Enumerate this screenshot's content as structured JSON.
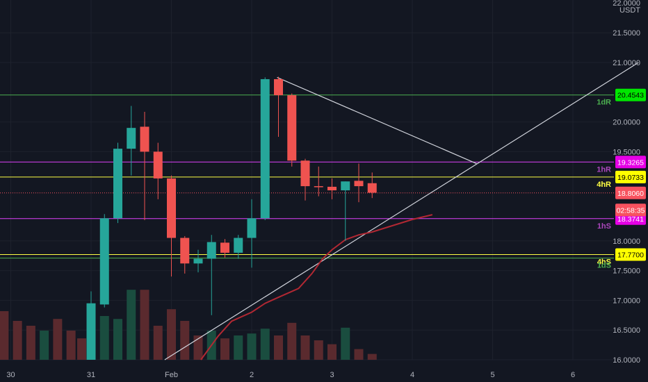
{
  "chart_data": {
    "type": "candlestick",
    "currency": "USDT",
    "y_axis": {
      "ticks": [
        16.0,
        16.5,
        17.0,
        17.5,
        18.0,
        19.5,
        20.0,
        21.0,
        21.5
      ],
      "tick_labels": [
        "16.0000",
        "16.5000",
        "17.0000",
        "17.5000",
        "18.0000",
        "19.5000",
        "20.0000",
        "21.0000",
        "21.5000"
      ],
      "top_label": "22.0000",
      "range": [
        16.0,
        22.0
      ]
    },
    "x_axis": {
      "ticks": [
        {
          "label": "30",
          "t": -6
        },
        {
          "label": "31",
          "t": 0
        },
        {
          "label": "Feb",
          "t": 6
        },
        {
          "label": "2",
          "t": 12
        },
        {
          "label": "3",
          "t": 18
        },
        {
          "label": "4",
          "t": 24
        },
        {
          "label": "5",
          "t": 30
        },
        {
          "label": "6",
          "t": 36
        }
      ],
      "range": [
        -6.8,
        40.9
      ]
    },
    "candles": [
      {
        "t": 0,
        "o": 16.0,
        "h": 17.15,
        "l": 16.0,
        "c": 16.95
      },
      {
        "t": 1,
        "o": 16.93,
        "h": 18.45,
        "l": 16.88,
        "c": 18.38
      },
      {
        "t": 2,
        "o": 18.38,
        "h": 19.65,
        "l": 18.3,
        "c": 19.55
      },
      {
        "t": 3,
        "o": 19.55,
        "h": 20.27,
        "l": 19.1,
        "c": 19.9
      },
      {
        "t": 4,
        "o": 19.92,
        "h": 20.17,
        "l": 18.35,
        "c": 19.5
      },
      {
        "t": 5,
        "o": 19.5,
        "h": 19.65,
        "l": 18.7,
        "c": 19.05
      },
      {
        "t": 6,
        "o": 19.05,
        "h": 19.1,
        "l": 17.4,
        "c": 18.05
      },
      {
        "t": 7,
        "o": 18.05,
        "h": 18.08,
        "l": 17.45,
        "c": 17.62
      },
      {
        "t": 8,
        "o": 17.62,
        "h": 17.85,
        "l": 17.47,
        "c": 17.7
      },
      {
        "t": 9,
        "o": 17.7,
        "h": 18.1,
        "l": 16.75,
        "c": 17.98
      },
      {
        "t": 10,
        "o": 17.97,
        "h": 18.03,
        "l": 17.72,
        "c": 17.8
      },
      {
        "t": 11,
        "o": 17.8,
        "h": 18.1,
        "l": 17.7,
        "c": 18.05
      },
      {
        "t": 12,
        "o": 18.05,
        "h": 18.7,
        "l": 17.55,
        "c": 18.38
      },
      {
        "t": 13,
        "o": 18.38,
        "h": 20.75,
        "l": 18.35,
        "c": 20.72
      },
      {
        "t": 14,
        "o": 20.72,
        "h": 20.76,
        "l": 19.75,
        "c": 20.45
      },
      {
        "t": 15,
        "o": 20.45,
        "h": 20.48,
        "l": 19.25,
        "c": 19.35
      },
      {
        "t": 16,
        "o": 19.35,
        "h": 19.38,
        "l": 18.68,
        "c": 18.92
      },
      {
        "t": 17,
        "o": 18.92,
        "h": 19.25,
        "l": 18.75,
        "c": 18.91
      },
      {
        "t": 18,
        "o": 18.91,
        "h": 19.05,
        "l": 18.7,
        "c": 18.85
      },
      {
        "t": 19,
        "o": 18.85,
        "h": 19.0,
        "l": 18.0,
        "c": 19.0
      },
      {
        "t": 20,
        "o": 19.01,
        "h": 19.3,
        "l": 18.65,
        "c": 18.92
      },
      {
        "t": 21,
        "o": 18.97,
        "h": 19.15,
        "l": 18.72,
        "c": 18.81
      }
    ],
    "volume": [
      {
        "t": 0,
        "v": 0.5,
        "up": true
      },
      {
        "t": 1,
        "v": 0.45,
        "up": true
      },
      {
        "t": 2,
        "v": 0.42,
        "up": true
      },
      {
        "t": 3,
        "v": 0.72,
        "up": true
      },
      {
        "t": 4,
        "v": 0.72,
        "up": false
      },
      {
        "t": 5,
        "v": 0.35,
        "up": false
      },
      {
        "t": 6,
        "v": 0.52,
        "up": false
      },
      {
        "t": 7,
        "v": 0.4,
        "up": false
      },
      {
        "t": 8,
        "v": 0.25,
        "up": false
      },
      {
        "t": 9,
        "v": 0.3,
        "up": true
      },
      {
        "t": 10,
        "v": 0.22,
        "up": false
      },
      {
        "t": 11,
        "v": 0.25,
        "up": true
      },
      {
        "t": 12,
        "v": 0.27,
        "up": true
      },
      {
        "t": 13,
        "v": 0.32,
        "up": true
      },
      {
        "t": 14,
        "v": 0.25,
        "up": false
      },
      {
        "t": 15,
        "v": 0.38,
        "up": false
      },
      {
        "t": 16,
        "v": 0.25,
        "up": false
      },
      {
        "t": 17,
        "v": 0.2,
        "up": false
      },
      {
        "t": 18,
        "v": 0.16,
        "up": false
      },
      {
        "t": 19,
        "v": 0.33,
        "up": true
      },
      {
        "t": 20,
        "v": 0.11,
        "up": false
      },
      {
        "t": 21,
        "v": 0.06,
        "up": false
      },
      {
        "t": -6.5,
        "v": 0.5,
        "up": false
      },
      {
        "t": -5.5,
        "v": 0.4,
        "up": false
      },
      {
        "t": -4.5,
        "v": 0.35,
        "up": false
      },
      {
        "t": -3.5,
        "v": 0.3,
        "up": true
      },
      {
        "t": -2.5,
        "v": 0.42,
        "up": false
      },
      {
        "t": -1.5,
        "v": 0.3,
        "up": false
      },
      {
        "t": -0.7,
        "v": 0.22,
        "up": false
      }
    ],
    "horizontal_levels": [
      {
        "price": 20.4543,
        "color": "#4caf50",
        "line_label": "1dR",
        "label_color": "#4caf50",
        "badge": "20.4543",
        "badge_bg": "#00e600",
        "badge_fg": "#000000",
        "style": "solid"
      },
      {
        "price": 19.3265,
        "color": "#e040fb",
        "line_label": "1hR",
        "label_color": "#ab47bc",
        "badge": "19.3265",
        "badge_bg": "#e600e6",
        "badge_fg": "#ffffff",
        "style": "solid"
      },
      {
        "price": 19.0733,
        "color": "#ffff44",
        "line_label": "4hR",
        "label_color": "#ffff44",
        "badge": "19.0733",
        "badge_bg": "#ffff00",
        "badge_fg": "#000000",
        "style": "solid"
      },
      {
        "price": 18.806,
        "color": "#f7525f",
        "line_label": "",
        "badge": "18.8060",
        "badge_bg": "#f7525f",
        "badge_fg": "#ffffff",
        "style": "dotted"
      },
      {
        "price": 18.3741,
        "color": "#e040fb",
        "line_label": "1hS",
        "label_color": "#ab47bc",
        "badge": "18.3741",
        "badge_bg": "#e600e6",
        "badge_fg": "#ffffff",
        "style": "solid"
      },
      {
        "price": 17.77,
        "color": "#ffff44",
        "line_label": "4hS",
        "label_color": "#ffff44",
        "badge": "17.7700",
        "badge_bg": "#ffff00",
        "badge_fg": "#000000",
        "style": "solid"
      },
      {
        "price": 17.71,
        "color": "#4caf50",
        "line_label": "1dS",
        "label_color": "#4caf50",
        "badge": "",
        "style": "solid"
      }
    ],
    "countdown": {
      "text": "02:58:35",
      "price": 18.52,
      "bg": "#f7525f",
      "fg": "#ffffff"
    },
    "trend_lines": [
      {
        "from": {
          "t": 5.5,
          "p": 16.0
        },
        "to": {
          "t": 40.9,
          "p": 21.0
        },
        "color": "#d1d4dc"
      },
      {
        "from": {
          "t": 13.9,
          "p": 20.75
        },
        "to": {
          "t": 28.8,
          "p": 19.3
        },
        "color": "#d1d4dc"
      }
    ],
    "moving_average": {
      "color": "#b22833",
      "points": [
        {
          "t": 8.2,
          "p": 16.0
        },
        {
          "t": 9.5,
          "p": 16.4
        },
        {
          "t": 10.5,
          "p": 16.65
        },
        {
          "t": 12,
          "p": 16.8
        },
        {
          "t": 13,
          "p": 16.95
        },
        {
          "t": 14,
          "p": 17.05
        },
        {
          "t": 15.5,
          "p": 17.2
        },
        {
          "t": 16.5,
          "p": 17.45
        },
        {
          "t": 17.3,
          "p": 17.7
        },
        {
          "t": 18,
          "p": 17.85
        },
        {
          "t": 19,
          "p": 18.02
        },
        {
          "t": 20,
          "p": 18.1
        },
        {
          "t": 21,
          "p": 18.15
        },
        {
          "t": 22,
          "p": 18.22
        },
        {
          "t": 24,
          "p": 18.36
        },
        {
          "t": 25.5,
          "p": 18.44
        }
      ]
    },
    "colors": {
      "up": "#26a69a",
      "down": "#ef5350",
      "volume_up": "#1a4d3f",
      "volume_down": "#5a2a2e",
      "grid": "#1e222d",
      "text": "#b2b5be",
      "background": "#131722"
    }
  }
}
